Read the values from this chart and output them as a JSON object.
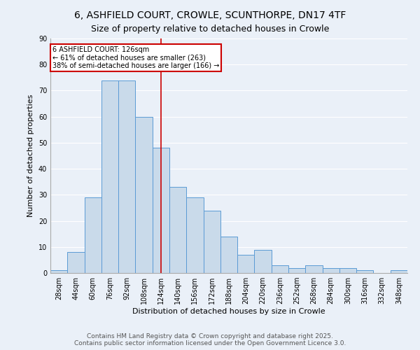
{
  "title_line1": "6, ASHFIELD COURT, CROWLE, SCUNTHORPE, DN17 4TF",
  "title_line2": "Size of property relative to detached houses in Crowle",
  "xlabel": "Distribution of detached houses by size in Crowle",
  "ylabel": "Number of detached properties",
  "bar_labels": [
    "28sqm",
    "44sqm",
    "60sqm",
    "76sqm",
    "92sqm",
    "108sqm",
    "124sqm",
    "140sqm",
    "156sqm",
    "172sqm",
    "188sqm",
    "204sqm",
    "220sqm",
    "236sqm",
    "252sqm",
    "268sqm",
    "284sqm",
    "300sqm",
    "316sqm",
    "332sqm",
    "348sqm"
  ],
  "bar_values": [
    1,
    8,
    29,
    74,
    74,
    60,
    48,
    33,
    29,
    24,
    14,
    7,
    9,
    3,
    2,
    3,
    2,
    2,
    1,
    0,
    1
  ],
  "bar_color": "#c9daea",
  "bar_edge_color": "#5b9bd5",
  "redline_x": 124,
  "annotation_title": "6 ASHFIELD COURT: 126sqm",
  "annotation_line1": "← 61% of detached houses are smaller (263)",
  "annotation_line2": "38% of semi-detached houses are larger (166) →",
  "annotation_box_color": "#ffffff",
  "annotation_box_edge": "#cc0000",
  "redline_color": "#cc0000",
  "footer1": "Contains HM Land Registry data © Crown copyright and database right 2025.",
  "footer2": "Contains public sector information licensed under the Open Government Licence 3.0.",
  "ylim": [
    0,
    90
  ],
  "yticks": [
    0,
    10,
    20,
    30,
    40,
    50,
    60,
    70,
    80,
    90
  ],
  "bg_color": "#eaf0f8",
  "grid_color": "#ffffff",
  "title_fontsize": 10,
  "axis_label_fontsize": 8,
  "tick_fontsize": 7,
  "footer_fontsize": 6.5
}
